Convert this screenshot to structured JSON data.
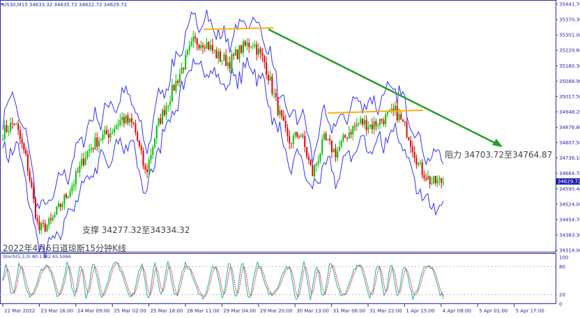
{
  "header": {
    "symbol_line": "US30,M15  34633.32 34635.72 34622.72 34629.72",
    "current_price": "34629.72"
  },
  "annotations": {
    "title": "2022年4月6日道琼斯15分钟K线",
    "support": "支撑 34277.32至34334.32",
    "resistance": "阻力 34703.72至34764.87"
  },
  "indicator": {
    "label": "Stoch(5,3,3) 80.1382 65.5066",
    "levels": [
      "100",
      "80",
      "20",
      "0"
    ]
  },
  "colors": {
    "axis": "#2a2aa8",
    "bands": "#3030ff",
    "up": "#00c000",
    "down": "#e00000",
    "resistance_line": "#ffb000",
    "trend_arrow": "#22a022",
    "stoch_main": "#20b0b0",
    "stoch_signal": "#e03030"
  },
  "chart_data": {
    "type": "candlestick",
    "ylim": [
      34314.0,
      35441.7
    ],
    "y_ticks": [
      "35441.70",
      "35370.30",
      "35301.00",
      "35229.60",
      "35160.30",
      "35088.90",
      "35017.50",
      "34948.20",
      "34876.80",
      "34807.50",
      "34736.10",
      "34664.70",
      "34595.40",
      "34524.00",
      "34454.70",
      "34383.30",
      "34314.00"
    ],
    "x_ticks": [
      "22 Mar 2022",
      "23 Mar 16:00",
      "24 Mar 09:00",
      "25 Mar 02:00",
      "25 Mar 18:00",
      "28 Mar 11:00",
      "29 Mar 04:00",
      "29 Mar 20:00",
      "30 Mar 13:00",
      "31 Mar 06:00",
      "31 Mar 22:00",
      "1 Apr 15:00",
      "4 Apr 08:00",
      "5 Apr 01:00",
      "5 Apr 17:00"
    ],
    "approx_close": [
      34854,
      34902,
      34726,
      34406,
      34438,
      34534,
      34630,
      34758,
      34822,
      34854,
      34918,
      34886,
      34662,
      34886,
      35014,
      35141,
      35269,
      35269,
      35205,
      35173,
      35237,
      35269,
      35173,
      34981,
      34806,
      34854,
      34662,
      34822,
      34758,
      34854,
      34902,
      34886,
      34918,
      34950,
      34854,
      34694,
      34624,
      34630
    ],
    "resistance_levels": [
      35300,
      34950
    ],
    "stoch_ylim": [
      0,
      100
    ],
    "stoch_levels": [
      20,
      80
    ]
  }
}
